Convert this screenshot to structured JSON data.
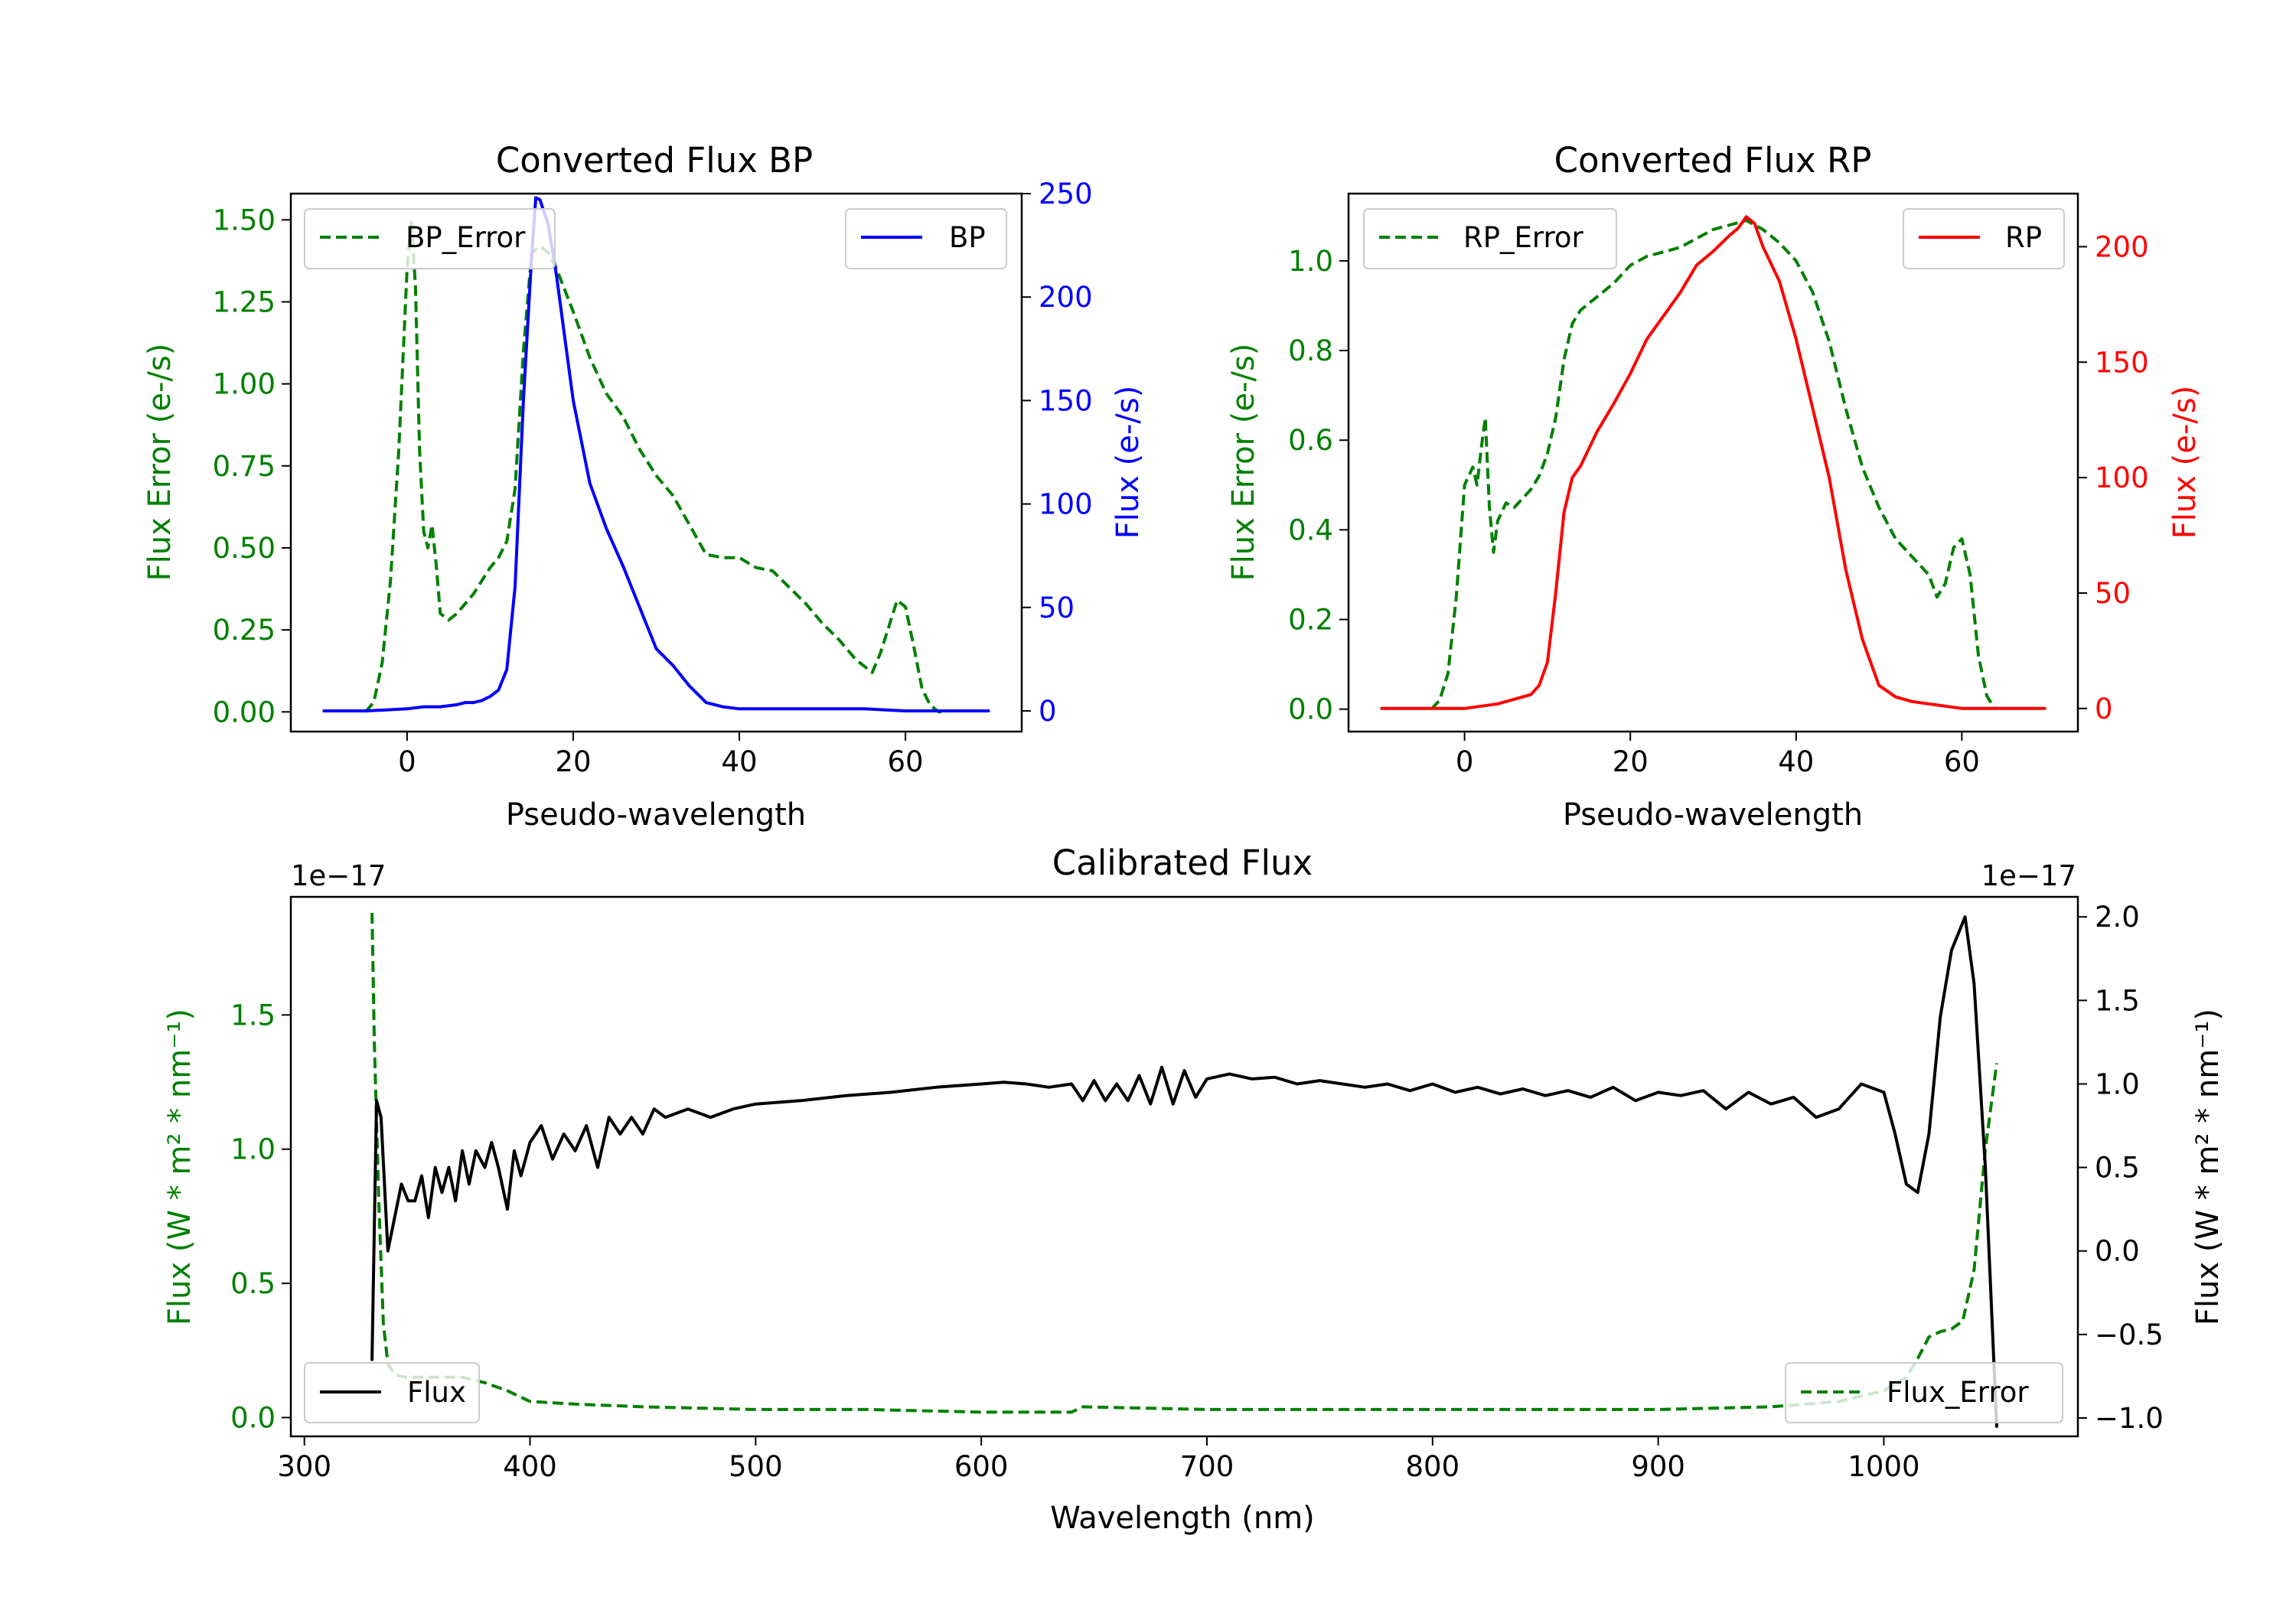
{
  "chart_data": [
    {
      "id": "bp",
      "type": "line",
      "title": "Converted Flux BP",
      "xlabel": "Pseudo-wavelength",
      "xlim": [
        -14,
        74
      ],
      "xticks": [
        0,
        20,
        40,
        60
      ],
      "left_axis": {
        "label": "Flux Error (e-/s)",
        "color": "#008000",
        "ylim": [
          -0.06,
          1.58
        ],
        "ticks": [
          0.0,
          0.25,
          0.5,
          0.75,
          1.0,
          1.25,
          1.5
        ],
        "tick_labels": [
          "0.00",
          "0.25",
          "0.50",
          "0.75",
          "1.00",
          "1.25",
          "1.50"
        ]
      },
      "right_axis": {
        "label": "Flux (e-/s)",
        "color": "#0000ff",
        "ylim": [
          -10,
          250
        ],
        "ticks": [
          0,
          50,
          100,
          150,
          200,
          250
        ],
        "tick_labels": [
          "0",
          "50",
          "100",
          "150",
          "200",
          "250"
        ]
      },
      "series": [
        {
          "name": "BP_Error",
          "axis": "left",
          "color": "#008000",
          "dash": true,
          "x": [
            -5,
            -4,
            -3,
            -2,
            -1,
            0,
            0.5,
            1,
            1.5,
            2,
            2.5,
            3,
            3.5,
            4,
            5,
            6,
            7,
            8,
            9,
            10,
            11,
            12,
            13,
            14,
            15,
            16,
            17,
            18,
            20,
            22,
            24,
            26,
            28,
            30,
            32,
            34,
            36,
            38,
            40,
            42,
            44,
            46,
            48,
            50,
            52,
            54,
            56,
            57,
            58,
            59,
            60,
            61,
            62,
            63,
            64,
            65
          ],
          "values": [
            0.0,
            0.03,
            0.15,
            0.4,
            0.8,
            1.35,
            1.5,
            1.3,
            0.8,
            0.55,
            0.5,
            0.57,
            0.45,
            0.3,
            0.28,
            0.3,
            0.33,
            0.36,
            0.4,
            0.44,
            0.47,
            0.52,
            0.68,
            1.1,
            1.4,
            1.42,
            1.4,
            1.35,
            1.22,
            1.08,
            0.97,
            0.9,
            0.8,
            0.72,
            0.66,
            0.57,
            0.48,
            0.47,
            0.47,
            0.44,
            0.43,
            0.38,
            0.33,
            0.27,
            0.22,
            0.16,
            0.12,
            0.18,
            0.26,
            0.34,
            0.32,
            0.2,
            0.07,
            0.02,
            0.0,
            0.0
          ]
        },
        {
          "name": "BP",
          "axis": "right",
          "color": "#0000ff",
          "dash": false,
          "x": [
            -10,
            -5,
            0,
            2,
            4,
            6,
            7,
            8,
            9,
            10,
            11,
            12,
            13,
            14,
            15,
            15.5,
            16,
            17,
            18,
            19,
            20,
            22,
            24,
            26,
            28,
            30,
            32,
            34,
            36,
            38,
            40,
            45,
            50,
            55,
            60,
            65,
            70
          ],
          "values": [
            0,
            0,
            1,
            2,
            2,
            3,
            4,
            4,
            5,
            7,
            10,
            20,
            60,
            150,
            220,
            248,
            247,
            235,
            210,
            180,
            150,
            110,
            88,
            70,
            50,
            30,
            22,
            12,
            4,
            2,
            1,
            1,
            1,
            1,
            0,
            0,
            0
          ]
        }
      ],
      "legend": [
        {
          "label": "BP_Error",
          "position": "top-left"
        },
        {
          "label": "BP",
          "position": "top-right"
        }
      ]
    },
    {
      "id": "rp",
      "type": "line",
      "title": "Converted Flux RP",
      "xlabel": "Pseudo-wavelength",
      "xlim": [
        -14,
        74
      ],
      "xticks": [
        0,
        20,
        40,
        60
      ],
      "left_axis": {
        "label": "Flux Error (e-/s)",
        "color": "#008000",
        "ylim": [
          -0.05,
          1.15
        ],
        "ticks": [
          0.0,
          0.2,
          0.4,
          0.6,
          0.8,
          1.0
        ],
        "tick_labels": [
          "0.0",
          "0.2",
          "0.4",
          "0.6",
          "0.8",
          "1.0"
        ]
      },
      "right_axis": {
        "label": "Flux (e-/s)",
        "color": "#ff0000",
        "ylim": [
          -10,
          223
        ],
        "ticks": [
          0,
          50,
          100,
          150,
          200
        ],
        "tick_labels": [
          "0",
          "50",
          "100",
          "150",
          "200"
        ]
      },
      "series": [
        {
          "name": "RP_Error",
          "axis": "left",
          "color": "#008000",
          "dash": true,
          "x": [
            -4,
            -3,
            -2,
            -1,
            0,
            1,
            1.5,
            2,
            2.5,
            3,
            3.5,
            4,
            5,
            6,
            7,
            8,
            9,
            10,
            11,
            12,
            13,
            14,
            16,
            18,
            20,
            22,
            24,
            26,
            28,
            30,
            32,
            34,
            36,
            38,
            40,
            42,
            44,
            46,
            48,
            50,
            52,
            54,
            56,
            57,
            58,
            59,
            60,
            61,
            62,
            63,
            64
          ],
          "values": [
            0.0,
            0.02,
            0.08,
            0.25,
            0.5,
            0.54,
            0.5,
            0.58,
            0.65,
            0.45,
            0.35,
            0.42,
            0.46,
            0.45,
            0.47,
            0.49,
            0.52,
            0.57,
            0.65,
            0.78,
            0.86,
            0.89,
            0.92,
            0.95,
            0.99,
            1.01,
            1.02,
            1.03,
            1.05,
            1.07,
            1.08,
            1.09,
            1.07,
            1.04,
            1.0,
            0.93,
            0.82,
            0.67,
            0.54,
            0.45,
            0.38,
            0.34,
            0.3,
            0.25,
            0.28,
            0.36,
            0.38,
            0.3,
            0.12,
            0.03,
            0.0
          ]
        },
        {
          "name": "RP",
          "axis": "right",
          "color": "#ff0000",
          "dash": false,
          "x": [
            -10,
            -5,
            0,
            2,
            4,
            6,
            7,
            8,
            9,
            10,
            11,
            12,
            13,
            14,
            16,
            18,
            20,
            22,
            24,
            26,
            28,
            30,
            32,
            33,
            34,
            35,
            36,
            38,
            40,
            42,
            44,
            46,
            48,
            50,
            52,
            54,
            56,
            58,
            60,
            65,
            70
          ],
          "values": [
            0,
            0,
            0,
            1,
            2,
            4,
            5,
            6,
            10,
            20,
            50,
            85,
            100,
            105,
            120,
            132,
            145,
            160,
            170,
            180,
            192,
            198,
            205,
            208,
            213,
            210,
            200,
            185,
            160,
            130,
            100,
            60,
            30,
            10,
            5,
            3,
            2,
            1,
            0,
            0,
            0
          ]
        }
      ],
      "legend": [
        {
          "label": "RP_Error",
          "position": "top-left"
        },
        {
          "label": "RP",
          "position": "top-right"
        }
      ]
    },
    {
      "id": "cal",
      "type": "line",
      "title": "Calibrated Flux",
      "xlabel": "Wavelength (nm)",
      "xlim": [
        294,
        1086
      ],
      "xticks": [
        300,
        400,
        500,
        600,
        700,
        800,
        900,
        1000
      ],
      "left_axis": {
        "label": "Flux (W * m² * nm⁻¹)",
        "color": "#008000",
        "offset_text": "1e−17",
        "ylim": [
          -0.07,
          1.94
        ],
        "ticks": [
          0.0,
          0.5,
          1.0,
          1.5
        ],
        "tick_labels": [
          "0.0",
          "0.5",
          "1.0",
          "1.5"
        ]
      },
      "right_axis": {
        "label": "Flux (W * m² * nm⁻¹)",
        "color": "#000000",
        "offset_text": "1e−17",
        "ylim": [
          -1.11,
          2.12
        ],
        "ticks": [
          -1.0,
          -0.5,
          0.0,
          0.5,
          1.0,
          1.5,
          2.0
        ],
        "tick_labels": [
          "−1.0",
          "−0.5",
          "0.0",
          "0.5",
          "1.0",
          "1.5",
          "2.0"
        ]
      },
      "series": [
        {
          "name": "Flux_Error",
          "axis": "left",
          "color": "#008000",
          "dash": true,
          "x": [
            330,
            331,
            333,
            335,
            337,
            340,
            345,
            350,
            360,
            370,
            380,
            390,
            400,
            420,
            450,
            500,
            550,
            600,
            640,
            645,
            700,
            800,
            900,
            950,
            980,
            1000,
            1010,
            1015,
            1020,
            1025,
            1030,
            1035,
            1040,
            1045,
            1050
          ],
          "values": [
            1.88,
            1.4,
            0.8,
            0.35,
            0.2,
            0.16,
            0.15,
            0.15,
            0.15,
            0.15,
            0.13,
            0.1,
            0.06,
            0.05,
            0.04,
            0.03,
            0.03,
            0.02,
            0.02,
            0.04,
            0.03,
            0.03,
            0.03,
            0.04,
            0.06,
            0.1,
            0.15,
            0.22,
            0.3,
            0.32,
            0.33,
            0.36,
            0.55,
            1.0,
            1.32
          ]
        },
        {
          "name": "Flux",
          "axis": "right",
          "color": "#000000",
          "dash": false,
          "x": [
            330,
            332,
            334,
            337,
            340,
            343,
            346,
            349,
            352,
            355,
            358,
            361,
            364,
            367,
            370,
            373,
            376,
            380,
            383,
            386,
            390,
            393,
            396,
            400,
            405,
            410,
            415,
            420,
            425,
            430,
            435,
            440,
            445,
            450,
            455,
            460,
            470,
            480,
            490,
            500,
            520,
            540,
            560,
            580,
            600,
            610,
            620,
            630,
            640,
            645,
            650,
            655,
            660,
            665,
            670,
            675,
            680,
            685,
            690,
            695,
            700,
            710,
            720,
            730,
            740,
            750,
            760,
            770,
            780,
            790,
            800,
            810,
            820,
            830,
            840,
            850,
            860,
            870,
            880,
            890,
            900,
            910,
            920,
            930,
            940,
            950,
            960,
            970,
            980,
            990,
            1000,
            1005,
            1010,
            1015,
            1020,
            1025,
            1030,
            1036,
            1040,
            1045,
            1050
          ],
          "values": [
            -0.65,
            0.9,
            0.8,
            0.0,
            0.2,
            0.4,
            0.3,
            0.3,
            0.45,
            0.2,
            0.5,
            0.35,
            0.5,
            0.3,
            0.6,
            0.4,
            0.6,
            0.5,
            0.65,
            0.5,
            0.25,
            0.6,
            0.45,
            0.65,
            0.75,
            0.55,
            0.7,
            0.6,
            0.75,
            0.5,
            0.8,
            0.7,
            0.8,
            0.7,
            0.85,
            0.8,
            0.85,
            0.8,
            0.85,
            0.88,
            0.9,
            0.93,
            0.95,
            0.98,
            1.0,
            1.01,
            1.0,
            0.98,
            1.0,
            0.9,
            1.02,
            0.9,
            1.0,
            0.9,
            1.05,
            0.88,
            1.1,
            0.88,
            1.08,
            0.92,
            1.03,
            1.06,
            1.03,
            1.04,
            1.0,
            1.02,
            1.0,
            0.98,
            1.0,
            0.96,
            1.0,
            0.95,
            0.98,
            0.94,
            0.97,
            0.93,
            0.96,
            0.92,
            0.98,
            0.9,
            0.95,
            0.93,
            0.96,
            0.85,
            0.95,
            0.88,
            0.92,
            0.8,
            0.85,
            1.0,
            0.95,
            0.7,
            0.4,
            0.35,
            0.7,
            1.4,
            1.8,
            2.0,
            1.6,
            0.5,
            -1.05
          ]
        }
      ],
      "legend": [
        {
          "label": "Flux",
          "position": "bottom-left"
        },
        {
          "label": "Flux_Error",
          "position": "bottom-right"
        }
      ]
    }
  ]
}
